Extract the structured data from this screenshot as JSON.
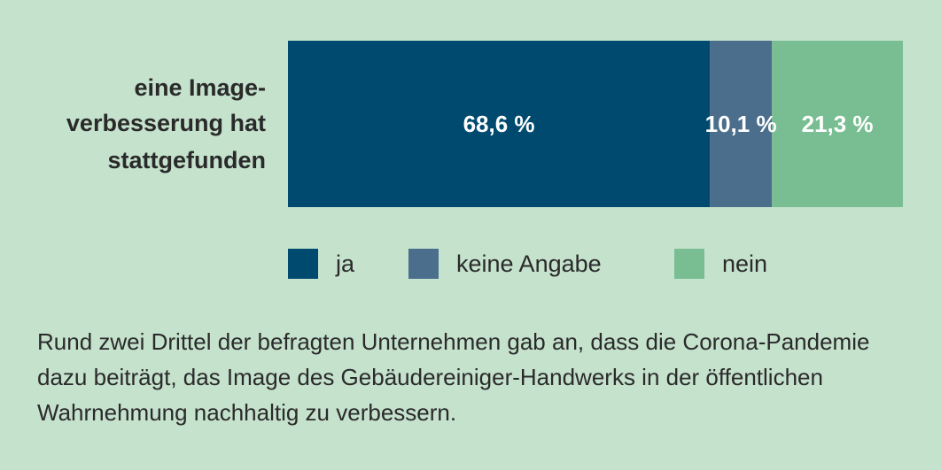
{
  "chart_data": {
    "type": "bar",
    "orientation": "horizontal",
    "stacked": true,
    "categories": [
      "eine Image-verbesserung hat stattgefunden"
    ],
    "category_label_lines": [
      "eine Image-",
      "verbesserung hat",
      "stattgefunden"
    ],
    "series": [
      {
        "name": "ja",
        "values": [
          68.6
        ],
        "label": "68,6 %",
        "color": "#004a6f"
      },
      {
        "name": "keine Angabe",
        "values": [
          10.1
        ],
        "label": "10,1 %",
        "color": "#4a6e8b"
      },
      {
        "name": "nein",
        "values": [
          21.3
        ],
        "label": "21,3 %",
        "color": "#78be92"
      }
    ],
    "xlim": [
      0,
      100
    ],
    "title": "",
    "xlabel": "",
    "ylabel": "",
    "legend_position": "bottom"
  },
  "caption": "Rund zwei Drittel der befragten Unternehmen gab an, dass die Corona-Pandemie dazu beiträgt, das Image des Gebäudereiniger-Handwerks in der öffentlichen Wahrnehmung nachhaltig zu verbessern."
}
